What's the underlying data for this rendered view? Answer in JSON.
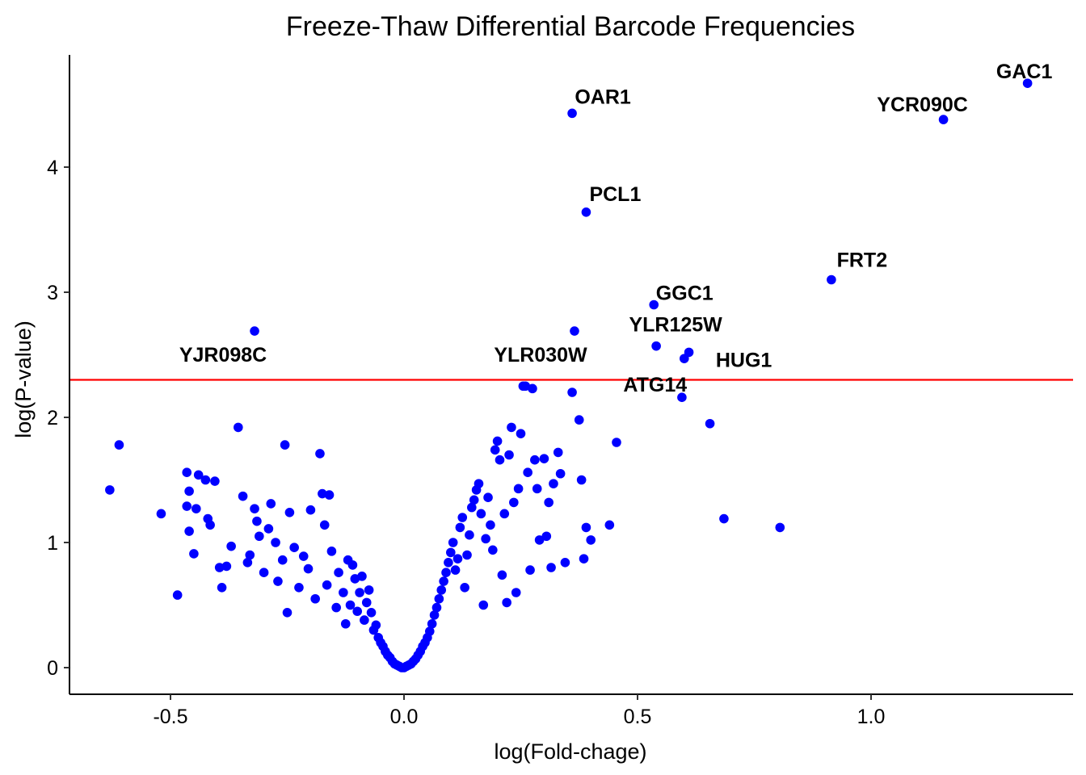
{
  "chart_data": {
    "type": "scatter",
    "title": "Freeze-Thaw Differential Barcode Frequencies",
    "xlabel": "log(Fold-chage)",
    "ylabel": "log(P-value)",
    "xlim": [
      -0.72,
      1.42
    ],
    "ylim": [
      -0.22,
      4.95
    ],
    "x_ticks": [
      -0.5,
      0.0,
      0.5,
      1.0
    ],
    "x_tick_labels": [
      "-0.5",
      "0.0",
      "0.5",
      "1.0"
    ],
    "y_ticks": [
      0,
      1,
      2,
      3,
      4
    ],
    "y_tick_labels": [
      "0",
      "1",
      "2",
      "3",
      "4"
    ],
    "point_color": "#0000ff",
    "threshold_color": "#ff0000",
    "threshold_y": 2.3,
    "grid": false,
    "legend": "none",
    "labeled_points": [
      {
        "label": "GAC1",
        "x": 1.335,
        "y": 4.67
      },
      {
        "label": "YCR090C",
        "x": 1.155,
        "y": 4.38
      },
      {
        "label": "OAR1",
        "x": 0.36,
        "y": 4.43
      },
      {
        "label": "PCL1",
        "x": 0.39,
        "y": 3.64
      },
      {
        "label": "FRT2",
        "x": 0.915,
        "y": 3.1
      },
      {
        "label": "GGC1",
        "x": 0.535,
        "y": 2.9
      },
      {
        "label": "YLR125W",
        "x": 0.54,
        "y": 2.57
      },
      {
        "label": "HUG1",
        "x": 0.61,
        "y": 2.52
      },
      {
        "label": "ATG14",
        "x": 0.6,
        "y": 2.47
      },
      {
        "label": "YLR030W",
        "x": 0.365,
        "y": 2.69
      },
      {
        "label": "YJR098C",
        "x": -0.32,
        "y": 2.69
      }
    ],
    "points": [
      [
        -0.63,
        1.42
      ],
      [
        -0.61,
        1.78
      ],
      [
        -0.52,
        1.23
      ],
      [
        -0.485,
        0.58
      ],
      [
        -0.465,
        1.56
      ],
      [
        -0.46,
        1.41
      ],
      [
        -0.465,
        1.29
      ],
      [
        -0.46,
        1.09
      ],
      [
        -0.445,
        1.27
      ],
      [
        -0.44,
        1.54
      ],
      [
        -0.425,
        1.5
      ],
      [
        -0.45,
        0.91
      ],
      [
        -0.42,
        1.19
      ],
      [
        -0.415,
        1.14
      ],
      [
        -0.405,
        1.49
      ],
      [
        -0.395,
        0.8
      ],
      [
        -0.39,
        0.64
      ],
      [
        -0.38,
        0.81
      ],
      [
        -0.37,
        0.97
      ],
      [
        -0.345,
        1.37
      ],
      [
        -0.355,
        1.92
      ],
      [
        -0.335,
        0.84
      ],
      [
        -0.33,
        0.9
      ],
      [
        -0.32,
        1.27
      ],
      [
        -0.315,
        1.17
      ],
      [
        -0.31,
        1.05
      ],
      [
        -0.3,
        0.76
      ],
      [
        -0.29,
        1.11
      ],
      [
        -0.285,
        1.31
      ],
      [
        -0.275,
        1.0
      ],
      [
        -0.27,
        0.69
      ],
      [
        -0.26,
        0.86
      ],
      [
        -0.255,
        1.78
      ],
      [
        -0.25,
        0.44
      ],
      [
        -0.245,
        1.24
      ],
      [
        -0.235,
        0.96
      ],
      [
        -0.225,
        0.64
      ],
      [
        -0.215,
        0.89
      ],
      [
        -0.205,
        0.79
      ],
      [
        -0.2,
        1.26
      ],
      [
        -0.19,
        0.55
      ],
      [
        -0.18,
        1.71
      ],
      [
        -0.175,
        1.39
      ],
      [
        -0.17,
        1.14
      ],
      [
        -0.165,
        0.66
      ],
      [
        -0.16,
        1.38
      ],
      [
        -0.155,
        0.93
      ],
      [
        -0.145,
        0.48
      ],
      [
        -0.14,
        0.76
      ],
      [
        -0.13,
        0.6
      ],
      [
        -0.125,
        0.35
      ],
      [
        -0.12,
        0.86
      ],
      [
        -0.115,
        0.5
      ],
      [
        -0.11,
        0.82
      ],
      [
        -0.105,
        0.71
      ],
      [
        -0.1,
        0.45
      ],
      [
        -0.095,
        0.6
      ],
      [
        -0.09,
        0.73
      ],
      [
        -0.085,
        0.38
      ],
      [
        -0.08,
        0.52
      ],
      [
        -0.075,
        0.62
      ],
      [
        -0.07,
        0.44
      ],
      [
        -0.065,
        0.3
      ],
      [
        -0.06,
        0.34
      ],
      [
        -0.055,
        0.24
      ],
      [
        -0.05,
        0.2
      ],
      [
        -0.045,
        0.17
      ],
      [
        -0.04,
        0.13
      ],
      [
        -0.035,
        0.1
      ],
      [
        -0.03,
        0.08
      ],
      [
        -0.025,
        0.05
      ],
      [
        -0.02,
        0.03
      ],
      [
        -0.015,
        0.02
      ],
      [
        -0.01,
        0.01
      ],
      [
        -0.005,
        0.0
      ],
      [
        0.0,
        0.0
      ],
      [
        0.005,
        0.01
      ],
      [
        0.01,
        0.02
      ],
      [
        0.015,
        0.03
      ],
      [
        0.02,
        0.05
      ],
      [
        0.025,
        0.07
      ],
      [
        0.03,
        0.1
      ],
      [
        0.035,
        0.13
      ],
      [
        0.04,
        0.17
      ],
      [
        0.045,
        0.2
      ],
      [
        0.05,
        0.24
      ],
      [
        0.055,
        0.29
      ],
      [
        0.06,
        0.35
      ],
      [
        0.065,
        0.42
      ],
      [
        0.07,
        0.48
      ],
      [
        0.075,
        0.55
      ],
      [
        0.08,
        0.62
      ],
      [
        0.085,
        0.69
      ],
      [
        0.09,
        0.76
      ],
      [
        0.095,
        0.84
      ],
      [
        0.1,
        0.92
      ],
      [
        0.105,
        1.0
      ],
      [
        0.11,
        0.78
      ],
      [
        0.115,
        0.87
      ],
      [
        0.12,
        1.12
      ],
      [
        0.125,
        1.2
      ],
      [
        0.13,
        0.64
      ],
      [
        0.135,
        0.9
      ],
      [
        0.14,
        1.06
      ],
      [
        0.145,
        1.28
      ],
      [
        0.15,
        1.34
      ],
      [
        0.155,
        1.42
      ],
      [
        0.16,
        1.47
      ],
      [
        0.165,
        1.23
      ],
      [
        0.17,
        0.5
      ],
      [
        0.175,
        1.03
      ],
      [
        0.18,
        1.36
      ],
      [
        0.185,
        1.14
      ],
      [
        0.19,
        0.94
      ],
      [
        0.195,
        1.74
      ],
      [
        0.2,
        1.81
      ],
      [
        0.205,
        1.66
      ],
      [
        0.21,
        0.74
      ],
      [
        0.215,
        1.23
      ],
      [
        0.22,
        0.52
      ],
      [
        0.225,
        1.7
      ],
      [
        0.23,
        1.92
      ],
      [
        0.235,
        1.32
      ],
      [
        0.24,
        0.6
      ],
      [
        0.245,
        1.43
      ],
      [
        0.25,
        1.87
      ],
      [
        0.255,
        2.25
      ],
      [
        0.26,
        2.25
      ],
      [
        0.265,
        1.56
      ],
      [
        0.27,
        0.78
      ],
      [
        0.275,
        2.23
      ],
      [
        0.28,
        1.66
      ],
      [
        0.285,
        1.43
      ],
      [
        0.29,
        1.02
      ],
      [
        0.3,
        1.67
      ],
      [
        0.305,
        1.05
      ],
      [
        0.31,
        1.32
      ],
      [
        0.315,
        0.8
      ],
      [
        0.32,
        1.47
      ],
      [
        0.33,
        1.72
      ],
      [
        0.335,
        1.55
      ],
      [
        0.345,
        0.84
      ],
      [
        0.36,
        2.2
      ],
      [
        0.375,
        1.98
      ],
      [
        0.38,
        1.5
      ],
      [
        0.385,
        0.87
      ],
      [
        0.39,
        1.12
      ],
      [
        0.4,
        1.02
      ],
      [
        0.44,
        1.14
      ],
      [
        0.455,
        1.8
      ],
      [
        0.595,
        2.16
      ],
      [
        0.655,
        1.95
      ],
      [
        0.685,
        1.19
      ],
      [
        0.805,
        1.12
      ]
    ]
  }
}
